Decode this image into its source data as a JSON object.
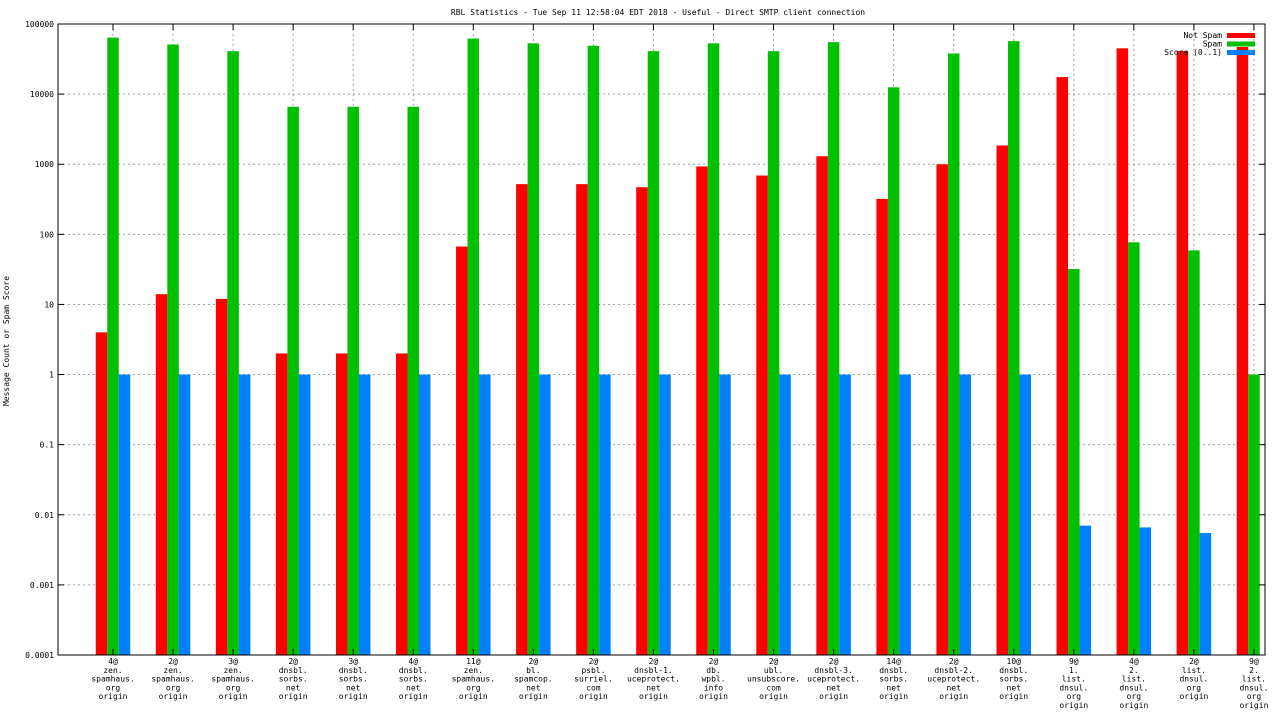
{
  "chart_data": {
    "type": "bar",
    "title": "RBL Statistics - Tue Sep 11 12:58:04 EDT 2018 - Useful - Direct SMTP client connection",
    "ylabel": "Message Count or Spam Score",
    "xlabel": "",
    "yscale": "log",
    "ylim": [
      0.0001,
      100000
    ],
    "grid": true,
    "legend_position": "top-right",
    "yticks": [
      "0.0001",
      "0.001",
      "0.01",
      "0.1",
      "1",
      "10",
      "100",
      "1000",
      "10000",
      "100000"
    ],
    "categories": [
      [
        "4@",
        "zen.",
        "spamhaus.",
        "org",
        "origin"
      ],
      [
        "2@",
        "zen.",
        "spamhaus.",
        "org",
        "origin"
      ],
      [
        "3@",
        "zen.",
        "spamhaus.",
        "org",
        "origin"
      ],
      [
        "2@",
        "dnsbl.",
        "sorbs.",
        "net",
        "origin"
      ],
      [
        "3@",
        "dnsbl.",
        "sorbs.",
        "net",
        "origin"
      ],
      [
        "4@",
        "dnsbl.",
        "sorbs.",
        "net",
        "origin"
      ],
      [
        "11@",
        "zen.",
        "spamhaus.",
        "org",
        "origin"
      ],
      [
        "2@",
        "bl.",
        "spamcop.",
        "net",
        "origin"
      ],
      [
        "2@",
        "psbl.",
        "surriel.",
        "com",
        "origin"
      ],
      [
        "2@",
        "dnsbl-1.",
        "uceprotect.",
        "net",
        "origin"
      ],
      [
        "2@",
        "db.",
        "wpbl.",
        "info",
        "origin"
      ],
      [
        "2@",
        "ubl.",
        "unsubscore.",
        "com",
        "origin"
      ],
      [
        "2@",
        "dnsbl-3.",
        "uceprotect.",
        "net",
        "origin"
      ],
      [
        "14@",
        "dnsbl.",
        "sorbs.",
        "net",
        "origin"
      ],
      [
        "2@",
        "dnsbl-2.",
        "uceprotect.",
        "net",
        "origin"
      ],
      [
        "10@",
        "dnsbl.",
        "sorbs.",
        "net",
        "origin"
      ],
      [
        "9@",
        "1.",
        "list.",
        "dnsul.",
        "org",
        "origin"
      ],
      [
        "4@",
        "2.",
        "list.",
        "dnsul.",
        "org",
        "origin"
      ],
      [
        "2@",
        "list.",
        "dnsul.",
        "org",
        "origin"
      ],
      [
        "9@",
        "2.",
        "list.",
        "dnsul.",
        "org",
        "origin"
      ]
    ],
    "series": [
      {
        "name": "Not Spam",
        "color": "#ff0000",
        "values": [
          4,
          14,
          12,
          2,
          2,
          2,
          67,
          520,
          520,
          470,
          930,
          690,
          1300,
          320,
          1000,
          1850,
          17500,
          45000,
          41000,
          47000
        ]
      },
      {
        "name": "Spam",
        "color": "#00c000",
        "values": [
          64000,
          51000,
          41000,
          6600,
          6600,
          6600,
          62000,
          53000,
          49000,
          41000,
          53000,
          41000,
          55000,
          12500,
          38000,
          57000,
          32,
          77,
          59,
          1
        ]
      },
      {
        "name": "Score (0..1)",
        "color": "#0080ff",
        "values": [
          1,
          1,
          1,
          1,
          1,
          1,
          1,
          1,
          1,
          1,
          1,
          1,
          1,
          1,
          1,
          1,
          0.007,
          0.0066,
          0.0055,
          null
        ]
      }
    ]
  }
}
